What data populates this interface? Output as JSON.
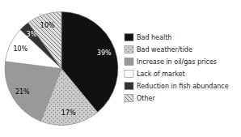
{
  "chart_data": {
    "type": "pie",
    "categories": [
      "Bad health",
      "Bad weather/tide",
      "Increase in oil/gas prices",
      "Lack of market",
      "Reduction in fish abundance",
      "Other"
    ],
    "values": [
      39,
      17,
      21,
      10,
      3,
      10
    ],
    "value_labels": [
      "39%",
      "17%",
      "21%",
      "10%",
      "3%",
      "10%"
    ],
    "colors": [
      "#111111",
      "#cccccc",
      "#999999",
      "#ffffff",
      "#333333",
      "#dddddd"
    ],
    "data_labels": true,
    "legend": "right"
  }
}
